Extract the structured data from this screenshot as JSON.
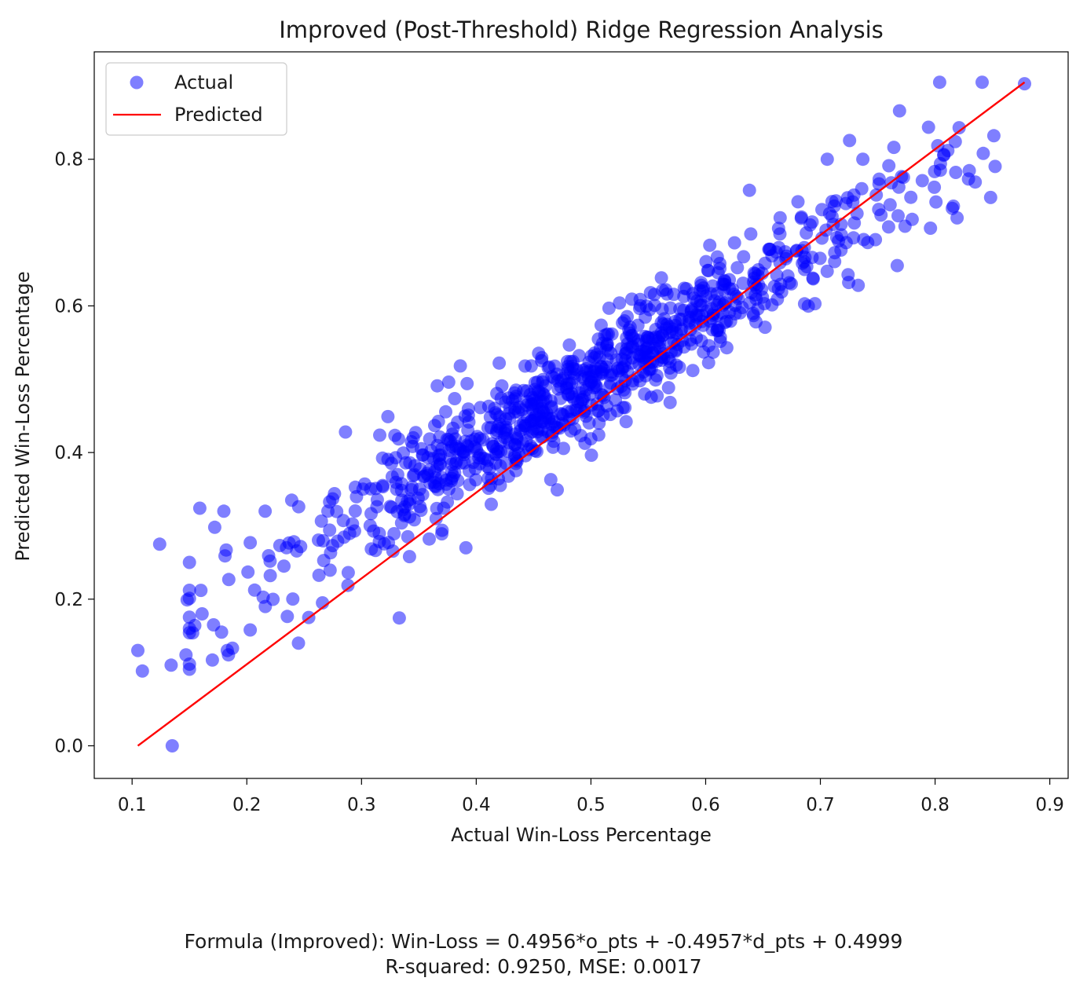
{
  "chart_data": {
    "type": "scatter",
    "title": "Improved (Post-Threshold) Ridge Regression Analysis",
    "xlabel": "Actual Win-Loss Percentage",
    "ylabel": "Predicted Win-Loss Percentage",
    "xlim": [
      0.067,
      0.916
    ],
    "ylim": [
      -0.0445,
      0.9465
    ],
    "xticks": [
      0.1,
      0.2,
      0.3,
      0.4,
      0.5,
      0.6,
      0.7,
      0.8,
      0.9
    ],
    "xtick_labels": [
      "0.1",
      "0.2",
      "0.3",
      "0.4",
      "0.5",
      "0.6",
      "0.7",
      "0.8",
      "0.9"
    ],
    "yticks": [
      0.0,
      0.2,
      0.4,
      0.6,
      0.8
    ],
    "ytick_labels": [
      "0.0",
      "0.2",
      "0.4",
      "0.6",
      "0.8"
    ],
    "grid": false,
    "legend_position": "top-left",
    "colors": {
      "actual": "#0000ff",
      "predicted": "#ff0000"
    },
    "series": [
      {
        "name": "Actual",
        "kind": "scatter",
        "trend": {
          "slope": 0.926,
          "intercept": 0.0355,
          "approx_count": 900,
          "seed": 7
        },
        "x": [
          0.105,
          0.109,
          0.124,
          0.134,
          0.135,
          0.147,
          0.148,
          0.159,
          0.16,
          0.161,
          0.17,
          0.171,
          0.172,
          0.178,
          0.18,
          0.181,
          0.182,
          0.183,
          0.184,
          0.203,
          0.203,
          0.216,
          0.245,
          0.254,
          0.266,
          0.286,
          0.323,
          0.359,
          0.366,
          0.376,
          0.391,
          0.392,
          0.42,
          0.465,
          0.769,
          0.804,
          0.821,
          0.841,
          0.842,
          0.815,
          0.816,
          0.818,
          0.835,
          0.796,
          0.78,
          0.767,
          0.733,
          0.706,
          0.737,
          0.878
        ],
        "y": [
          0.13,
          0.102,
          0.275,
          0.11,
          0.0,
          0.124,
          0.199,
          0.324,
          0.212,
          0.18,
          0.117,
          0.165,
          0.298,
          0.155,
          0.32,
          0.259,
          0.267,
          0.13,
          0.124,
          0.277,
          0.158,
          0.32,
          0.14,
          0.175,
          0.195,
          0.428,
          0.449,
          0.282,
          0.491,
          0.496,
          0.27,
          0.494,
          0.522,
          0.363,
          0.866,
          0.905,
          0.843,
          0.905,
          0.808,
          0.733,
          0.736,
          0.782,
          0.769,
          0.706,
          0.718,
          0.655,
          0.628,
          0.8,
          0.8,
          0.903
        ]
      },
      {
        "name": "Predicted",
        "kind": "line",
        "x": [
          0.105,
          0.878
        ],
        "y": [
          0.0,
          0.905
        ]
      }
    ]
  },
  "footer": {
    "formula": "Formula (Improved): Win-Loss = 0.4956*o_pts + -0.4957*d_pts + 0.4999",
    "metrics": "R-squared: 0.9250, MSE: 0.0017"
  }
}
